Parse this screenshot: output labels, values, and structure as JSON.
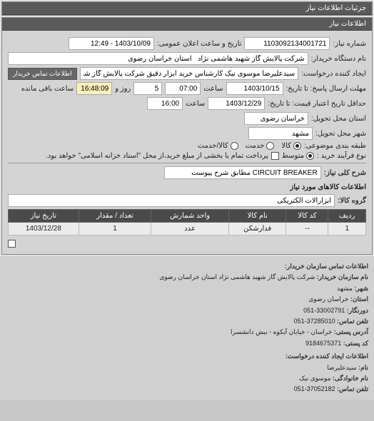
{
  "panel": {
    "title": "جزئیات اطلاعات نیاز"
  },
  "details": {
    "title": "اطلاعات نیاز",
    "fields": {
      "need_no_label": "شماره نیاز:",
      "need_no": "1103092134001721",
      "announce_label": "تاریخ و ساعت اعلان عمومی:",
      "announce_value": "1403/10/09 - 12:49",
      "buyer_org_label": "نام دستگاه خریدار:",
      "buyer_org": "شرکت پالایش گاز شهید هاشمی نژاد   استان خراسان رضوی",
      "requester_label": "ایجاد کننده درخواست:",
      "requester": "سیدعلیرضا موسوی نیک کارشناس خرید ابزار دقیق شرکت پالایش گاز شهید ها",
      "contact_btn": "اطلاعات تماس خریدار",
      "deadline_label": "مهلت ارسال پاسخ: تا تاریخ:",
      "deadline_date": "1403/10/15",
      "deadline_time_label": "ساعت",
      "deadline_time": "07:00",
      "days_label": "روز و",
      "days_value": "5",
      "remaining_label": "ساعت باقی مانده",
      "remaining_value": "16:48:09",
      "valid_label": "حداقل تاریخ اعتبار قیمت: تا تاریخ:",
      "valid_date": "1403/12/29",
      "valid_time_label": "ساعت",
      "valid_time": "16:00",
      "delivery_province_label": "استان محل تحویل:",
      "delivery_province": "خراسان رضوی",
      "delivery_city_label": "شهر محل تحویل:",
      "delivery_city": "مشهد",
      "subject_class_label": "طبقه بندی موضوعی:",
      "radio_goods": "کالا",
      "radio_service": "خدمت",
      "radio_goods_service": "کالا/خدمت",
      "purchase_process_label": "نوع فرآیند خرید :",
      "radio_medium": "متوسط",
      "purchase_note": "پرداخت تمام یا بخشی از مبلغ خرید،از محل \"اسناد خزانه اسلامی\" خواهد بود.",
      "subject_label": "شرح کلی نیاز:",
      "subject": "CIRCUIT BREAKER مطابق شرح پیوست"
    }
  },
  "items": {
    "title": "اطلاعات کالاهای مورد نیاز",
    "group_label": "گروه کالا:",
    "group_value": "ابزارآلات الکتریکی",
    "columns": [
      "ردیف",
      "کد کالا",
      "نام کالا",
      "واحد شمارش",
      "تعداد / مقدار",
      "تاریخ نیاز"
    ],
    "rows": [
      [
        "1",
        "--",
        "فدارشکن",
        "عدد",
        "1",
        "1403/12/28"
      ]
    ]
  },
  "contact": {
    "title": "اطلاعات تماس سازمان خریدار:",
    "lines": [
      {
        "k": "نام سازمان خریدار:",
        "v": "شرکت پالایش گاز شهید هاشمی نژاد استان خراسان رضوی"
      },
      {
        "k": "شهر:",
        "v": "مشهد"
      },
      {
        "k": "استان:",
        "v": "خراسان رضوی"
      },
      {
        "k": "دورنگار:",
        "v": "33002791-051"
      },
      {
        "k": "تلفن تماس:",
        "v": "37285010-051"
      },
      {
        "k": "آدرس پستی:",
        "v": "خراسان - خیابان آبکوه - نبش دانشسرا"
      },
      {
        "k": "کد پستی:",
        "v": "9184675371"
      }
    ],
    "requester_title": "اطلاعات ایجاد کننده درخواست:",
    "requester_lines": [
      {
        "k": "نام:",
        "v": "سیدعلیرضا"
      },
      {
        "k": "نام خانوادگی:",
        "v": "موسوی نیک"
      },
      {
        "k": "تلفن تماس:",
        "v": "37052182-051"
      }
    ]
  }
}
